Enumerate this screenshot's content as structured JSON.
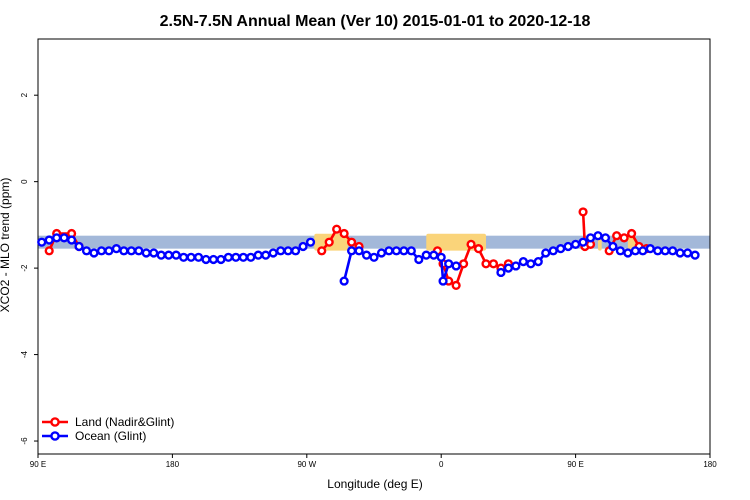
{
  "chart_data": {
    "type": "line",
    "title": "2.5N-7.5N Annual Mean (Ver 10)   2015-01-01 to 2020-12-18",
    "xlabel": "Longitude (deg E)",
    "ylabel": "XCO2 - MLO trend (ppm)",
    "xlim": [
      90,
      270
    ],
    "ylim": [
      -6.3,
      3.3
    ],
    "x_ticks": [
      {
        "value": 90,
        "label": "90 E"
      },
      {
        "value": 126,
        "label": "180"
      },
      {
        "value": 162,
        "label": "90 W"
      },
      {
        "value": 198,
        "label": "0"
      },
      {
        "value": 234,
        "label": "90 E"
      },
      {
        "value": 270,
        "label": "180"
      }
    ],
    "y_ticks": [
      {
        "value": 2,
        "label": "2"
      },
      {
        "value": 0,
        "label": "0"
      },
      {
        "value": -2,
        "label": "-2"
      },
      {
        "value": -4,
        "label": "-4"
      },
      {
        "value": -6,
        "label": "-6"
      }
    ],
    "legend_position": "bottom-left",
    "background_band": {
      "y_range": [
        -1.55,
        -1.25
      ],
      "ocean_color": "#a3b8d9",
      "land_color": "#fad47a",
      "land_segments": [
        [
          164,
          173
        ],
        [
          194,
          210
        ],
        [
          240,
          241
        ],
        [
          248,
          250
        ]
      ]
    },
    "series": [
      {
        "name": "Land (Nadir&Glint)",
        "color": "#ff0000",
        "segments": [
          [
            [
              93,
              -1.6
            ],
            [
              95,
              -1.2
            ],
            [
              99,
              -1.2
            ],
            [
              101,
              -1.5
            ]
          ],
          [
            [
              166,
              -1.6
            ],
            [
              168,
              -1.4
            ],
            [
              170,
              -1.1
            ],
            [
              172,
              -1.2
            ],
            [
              174,
              -1.4
            ],
            [
              176,
              -1.5
            ]
          ],
          [
            [
              197,
              -1.6
            ],
            [
              198.5,
              -1.9
            ],
            [
              200,
              -2.3
            ],
            [
              202,
              -2.4
            ],
            [
              204,
              -1.9
            ],
            [
              206,
              -1.45
            ],
            [
              208,
              -1.55
            ],
            [
              210,
              -1.9
            ],
            [
              212,
              -1.9
            ],
            [
              214,
              -2.0
            ],
            [
              216,
              -1.9
            ]
          ],
          [
            [
              236,
              -0.7
            ],
            [
              236.5,
              -1.5
            ]
          ],
          [
            [
              238,
              -1.45
            ]
          ],
          [
            [
              243,
              -1.6
            ],
            [
              245,
              -1.25
            ],
            [
              247,
              -1.3
            ],
            [
              249,
              -1.2
            ],
            [
              251,
              -1.5
            ],
            [
              253,
              -1.55
            ]
          ]
        ]
      },
      {
        "name": "Ocean (Glint)",
        "color": "#0000ff",
        "segments": [
          [
            [
              91,
              -1.4
            ],
            [
              93,
              -1.35
            ],
            [
              95,
              -1.3
            ],
            [
              97,
              -1.3
            ],
            [
              99,
              -1.35
            ],
            [
              101,
              -1.5
            ],
            [
              103,
              -1.6
            ],
            [
              105,
              -1.65
            ],
            [
              107,
              -1.6
            ],
            [
              109,
              -1.6
            ],
            [
              111,
              -1.55
            ],
            [
              113,
              -1.6
            ],
            [
              115,
              -1.6
            ],
            [
              117,
              -1.6
            ],
            [
              119,
              -1.65
            ],
            [
              121,
              -1.65
            ],
            [
              123,
              -1.7
            ],
            [
              125,
              -1.7
            ],
            [
              127,
              -1.7
            ],
            [
              129,
              -1.75
            ],
            [
              131,
              -1.75
            ],
            [
              133,
              -1.75
            ],
            [
              135,
              -1.8
            ],
            [
              137,
              -1.8
            ],
            [
              139,
              -1.8
            ],
            [
              141,
              -1.75
            ],
            [
              143,
              -1.75
            ],
            [
              145,
              -1.75
            ],
            [
              147,
              -1.75
            ],
            [
              149,
              -1.7
            ],
            [
              151,
              -1.7
            ],
            [
              153,
              -1.65
            ],
            [
              155,
              -1.6
            ],
            [
              157,
              -1.6
            ],
            [
              159,
              -1.6
            ],
            [
              161,
              -1.5
            ],
            [
              163,
              -1.4
            ]
          ],
          [
            [
              172,
              -2.3
            ],
            [
              174,
              -1.6
            ],
            [
              176,
              -1.6
            ],
            [
              178,
              -1.7
            ],
            [
              180,
              -1.75
            ],
            [
              182,
              -1.65
            ],
            [
              184,
              -1.6
            ],
            [
              186,
              -1.6
            ],
            [
              188,
              -1.6
            ],
            [
              190,
              -1.6
            ],
            [
              192,
              -1.8
            ],
            [
              194,
              -1.7
            ],
            [
              196,
              -1.7
            ],
            [
              198,
              -1.75
            ],
            [
              198.5,
              -2.3
            ],
            [
              200,
              -1.9
            ],
            [
              202,
              -1.95
            ]
          ],
          [
            [
              214,
              -2.1
            ],
            [
              216,
              -2.0
            ],
            [
              218,
              -1.95
            ],
            [
              220,
              -1.85
            ],
            [
              222,
              -1.9
            ],
            [
              224,
              -1.85
            ],
            [
              226,
              -1.65
            ],
            [
              228,
              -1.6
            ],
            [
              230,
              -1.55
            ],
            [
              232,
              -1.5
            ],
            [
              234,
              -1.45
            ],
            [
              236,
              -1.4
            ],
            [
              238,
              -1.3
            ],
            [
              240,
              -1.25
            ],
            [
              242,
              -1.3
            ],
            [
              244,
              -1.5
            ],
            [
              246,
              -1.6
            ],
            [
              248,
              -1.65
            ],
            [
              250,
              -1.6
            ],
            [
              252,
              -1.6
            ],
            [
              254,
              -1.55
            ],
            [
              256,
              -1.6
            ],
            [
              258,
              -1.6
            ],
            [
              260,
              -1.6
            ],
            [
              262,
              -1.65
            ],
            [
              264,
              -1.65
            ],
            [
              266,
              -1.7
            ]
          ]
        ]
      }
    ]
  }
}
